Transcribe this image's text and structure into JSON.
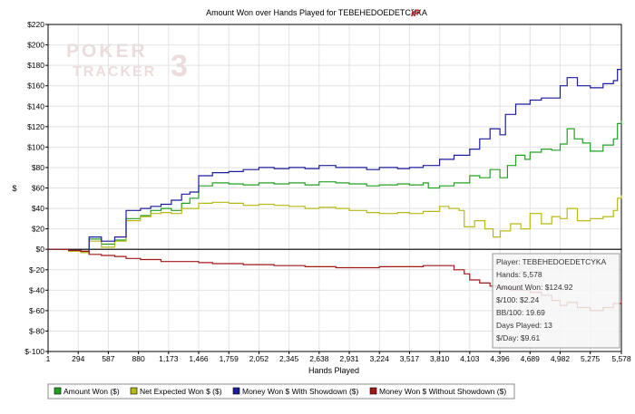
{
  "chart_data": {
    "type": "line",
    "title": "Amount Won over Hands Played for TEBEHEDOEDETCYKA",
    "xlabel": "Hands Played",
    "ylabel": "$",
    "xlim": [
      1,
      5578
    ],
    "ylim": [
      -100,
      220
    ],
    "grid": true,
    "legend_position": "bottom",
    "x_ticks": [
      1,
      294,
      587,
      880,
      1173,
      1466,
      1759,
      2052,
      2345,
      2638,
      2931,
      3224,
      3517,
      3810,
      4103,
      4396,
      4689,
      4982,
      5275,
      5578
    ],
    "x_tick_labels": [
      "1",
      "294",
      "587",
      "880",
      "1,173",
      "1,466",
      "1,759",
      "2,052",
      "2,345",
      "2,638",
      "2,931",
      "3,224",
      "3,517",
      "3,810",
      "4,103",
      "4,396",
      "4,689",
      "4,982",
      "5,275",
      "5,578"
    ],
    "y_ticks": [
      -100,
      -80,
      -60,
      -40,
      -20,
      0,
      20,
      40,
      60,
      80,
      100,
      120,
      140,
      160,
      180,
      200,
      220
    ],
    "y_tick_labels": [
      "$-100",
      "$-80",
      "$-60",
      "$-40",
      "$-20",
      "$0",
      "$20",
      "$40",
      "$60",
      "$80",
      "$100",
      "$120",
      "$140",
      "$160",
      "$180",
      "$200",
      "$220"
    ],
    "series": [
      {
        "name": "Amount Won ($)",
        "color": "#22a022",
        "points": [
          [
            1,
            0
          ],
          [
            200,
            -2
          ],
          [
            320,
            -3
          ],
          [
            400,
            10
          ],
          [
            520,
            5
          ],
          [
            650,
            9
          ],
          [
            760,
            30
          ],
          [
            900,
            33
          ],
          [
            1000,
            38
          ],
          [
            1100,
            40
          ],
          [
            1200,
            38
          ],
          [
            1300,
            45
          ],
          [
            1380,
            50
          ],
          [
            1466,
            62
          ],
          [
            1600,
            65
          ],
          [
            1759,
            64
          ],
          [
            1900,
            63
          ],
          [
            2052,
            65
          ],
          [
            2200,
            64
          ],
          [
            2345,
            65
          ],
          [
            2500,
            63
          ],
          [
            2638,
            66
          ],
          [
            2800,
            65
          ],
          [
            2931,
            64
          ],
          [
            3100,
            62
          ],
          [
            3224,
            63
          ],
          [
            3400,
            64
          ],
          [
            3517,
            63
          ],
          [
            3650,
            65
          ],
          [
            3700,
            60
          ],
          [
            3810,
            62
          ],
          [
            3950,
            65
          ],
          [
            4103,
            72
          ],
          [
            4200,
            70
          ],
          [
            4300,
            78
          ],
          [
            4396,
            70
          ],
          [
            4470,
            82
          ],
          [
            4550,
            92
          ],
          [
            4640,
            88
          ],
          [
            4689,
            95
          ],
          [
            4800,
            98
          ],
          [
            4900,
            97
          ],
          [
            4982,
            103
          ],
          [
            5050,
            118
          ],
          [
            5120,
            108
          ],
          [
            5200,
            104
          ],
          [
            5275,
            96
          ],
          [
            5400,
            102
          ],
          [
            5500,
            108
          ],
          [
            5540,
            123
          ],
          [
            5578,
            126
          ]
        ]
      },
      {
        "name": "Net Expected Won $ ($)",
        "color": "#b8b818",
        "points": [
          [
            1,
            0
          ],
          [
            200,
            -2
          ],
          [
            320,
            -3
          ],
          [
            400,
            8
          ],
          [
            520,
            2
          ],
          [
            650,
            8
          ],
          [
            760,
            28
          ],
          [
            900,
            32
          ],
          [
            1000,
            35
          ],
          [
            1100,
            36
          ],
          [
            1200,
            35
          ],
          [
            1300,
            40
          ],
          [
            1466,
            45
          ],
          [
            1600,
            46
          ],
          [
            1759,
            45
          ],
          [
            1900,
            43
          ],
          [
            2052,
            44
          ],
          [
            2200,
            43
          ],
          [
            2345,
            42
          ],
          [
            2500,
            40
          ],
          [
            2638,
            41
          ],
          [
            2800,
            40
          ],
          [
            2931,
            38
          ],
          [
            3100,
            36
          ],
          [
            3224,
            35
          ],
          [
            3400,
            36
          ],
          [
            3517,
            35
          ],
          [
            3650,
            37
          ],
          [
            3810,
            42
          ],
          [
            3900,
            40
          ],
          [
            4000,
            38
          ],
          [
            4050,
            22
          ],
          [
            4150,
            28
          ],
          [
            4250,
            20
          ],
          [
            4330,
            12
          ],
          [
            4400,
            18
          ],
          [
            4500,
            25
          ],
          [
            4600,
            20
          ],
          [
            4689,
            35
          ],
          [
            4800,
            25
          ],
          [
            4900,
            32
          ],
          [
            4982,
            30
          ],
          [
            5050,
            40
          ],
          [
            5150,
            28
          ],
          [
            5275,
            30
          ],
          [
            5400,
            32
          ],
          [
            5500,
            38
          ],
          [
            5540,
            50
          ],
          [
            5578,
            53
          ]
        ]
      },
      {
        "name": "Money Won $ With Showdown ($)",
        "color": "#1c1c9c",
        "points": [
          [
            1,
            0
          ],
          [
            200,
            -1
          ],
          [
            320,
            -2
          ],
          [
            400,
            12
          ],
          [
            520,
            8
          ],
          [
            650,
            12
          ],
          [
            760,
            38
          ],
          [
            900,
            40
          ],
          [
            1000,
            42
          ],
          [
            1100,
            44
          ],
          [
            1200,
            48
          ],
          [
            1300,
            54
          ],
          [
            1380,
            56
          ],
          [
            1466,
            72
          ],
          [
            1600,
            75
          ],
          [
            1759,
            76
          ],
          [
            1900,
            78
          ],
          [
            2052,
            80
          ],
          [
            2200,
            79
          ],
          [
            2345,
            80
          ],
          [
            2500,
            79
          ],
          [
            2638,
            82
          ],
          [
            2800,
            80
          ],
          [
            2931,
            80
          ],
          [
            3100,
            78
          ],
          [
            3224,
            80
          ],
          [
            3400,
            79
          ],
          [
            3517,
            80
          ],
          [
            3650,
            82
          ],
          [
            3810,
            88
          ],
          [
            3950,
            92
          ],
          [
            4103,
            98
          ],
          [
            4200,
            108
          ],
          [
            4300,
            118
          ],
          [
            4396,
            112
          ],
          [
            4450,
            132
          ],
          [
            4550,
            142
          ],
          [
            4689,
            146
          ],
          [
            4800,
            148
          ],
          [
            4900,
            148
          ],
          [
            4982,
            160
          ],
          [
            5050,
            168
          ],
          [
            5150,
            160
          ],
          [
            5275,
            158
          ],
          [
            5400,
            162
          ],
          [
            5500,
            165
          ],
          [
            5540,
            176
          ],
          [
            5578,
            176
          ]
        ]
      },
      {
        "name": "Money Won $ Without Showdown ($)",
        "color": "#a01818",
        "points": [
          [
            1,
            0
          ],
          [
            200,
            -1
          ],
          [
            320,
            -2
          ],
          [
            400,
            -5
          ],
          [
            520,
            -6
          ],
          [
            650,
            -7
          ],
          [
            760,
            -9
          ],
          [
            900,
            -10
          ],
          [
            1000,
            -10
          ],
          [
            1100,
            -12
          ],
          [
            1200,
            -12
          ],
          [
            1300,
            -12
          ],
          [
            1466,
            -13
          ],
          [
            1600,
            -14
          ],
          [
            1759,
            -14
          ],
          [
            1900,
            -15
          ],
          [
            2052,
            -15
          ],
          [
            2200,
            -16
          ],
          [
            2345,
            -16
          ],
          [
            2500,
            -17
          ],
          [
            2638,
            -17
          ],
          [
            2800,
            -18
          ],
          [
            2931,
            -18
          ],
          [
            3100,
            -18
          ],
          [
            3224,
            -17
          ],
          [
            3400,
            -17
          ],
          [
            3517,
            -17
          ],
          [
            3650,
            -16
          ],
          [
            3810,
            -16
          ],
          [
            3950,
            -20
          ],
          [
            4050,
            -24
          ],
          [
            4103,
            -30
          ],
          [
            4200,
            -33
          ],
          [
            4300,
            -36
          ],
          [
            4396,
            -38
          ],
          [
            4500,
            -40
          ],
          [
            4600,
            -40
          ],
          [
            4689,
            -42
          ],
          [
            4800,
            -45
          ],
          [
            4900,
            -50
          ],
          [
            4982,
            -55
          ],
          [
            5050,
            -52
          ],
          [
            5150,
            -57
          ],
          [
            5275,
            -60
          ],
          [
            5400,
            -57
          ],
          [
            5500,
            -53
          ],
          [
            5578,
            -50
          ]
        ]
      }
    ],
    "tooltip": {
      "player": "Player: TEBEHEDOEDETCYKA",
      "hands": "Hands: 5,578",
      "amount_won": "Amount Won: $124.92",
      "per_100": "$/100: $2.24",
      "bb_100": "BB/100: 19.69",
      "days_played": "Days Played: 13",
      "per_day": "$/Day: $9.61"
    }
  },
  "logo": {
    "line1": "POKER",
    "line2": "TRACKER",
    "version": "3",
    "title_icon": "iP"
  },
  "colors": {
    "plot_border": "#000000",
    "grid": "#e2e2e2",
    "zero_line": "#000000",
    "watermark": "#eadede",
    "tooltip_bg": "#f6f6f6",
    "tooltip_border": "#9a9a9a"
  }
}
